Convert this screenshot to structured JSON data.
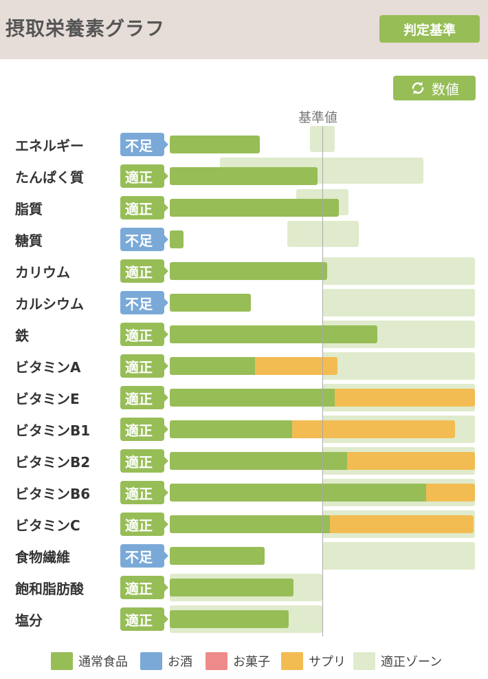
{
  "header": {
    "title": "摂取栄養素グラフ",
    "criteria_label": "判定基準"
  },
  "toggle": {
    "label": "数値",
    "icon": "refresh-icon"
  },
  "reference_label": "基準値",
  "badges": {
    "ok": "適正",
    "ng": "不足"
  },
  "colors": {
    "food": "#97bd57",
    "alcohol": "#7aa9d7",
    "sweets": "#ef8a8a",
    "supplement": "#f2bc52",
    "zone": "#dfebcc",
    "header_bg": "#e6ddd8"
  },
  "chart_data": {
    "type": "bar",
    "orientation": "horizontal",
    "stacked": true,
    "unit": "percent of reference value",
    "reference_value": 100,
    "categories": [
      "エネルギー",
      "たんぱく質",
      "脂質",
      "糖質",
      "カリウム",
      "カルシウム",
      "鉄",
      "ビタミンA",
      "ビタミンE",
      "ビタミンB1",
      "ビタミンB2",
      "ビタミンB6",
      "ビタミンC",
      "食物繊維",
      "飽和脂肪酸",
      "塩分"
    ],
    "status": [
      "不足",
      "適正",
      "適正",
      "不足",
      "適正",
      "不足",
      "適正",
      "適正",
      "適正",
      "適正",
      "適正",
      "適正",
      "適正",
      "不足",
      "適正",
      "適正"
    ],
    "series": [
      {
        "name": "通常食品",
        "values": [
          59,
          97,
          111,
          9,
          103,
          53,
          136,
          56,
          108,
          80,
          116,
          168,
          105,
          62,
          81,
          78
        ]
      },
      {
        "name": "お酒",
        "values": [
          0,
          0,
          0,
          0,
          0,
          0,
          0,
          0,
          0,
          0,
          0,
          0,
          0,
          0,
          0,
          0
        ]
      },
      {
        "name": "お菓子",
        "values": [
          0,
          0,
          0,
          0,
          0,
          0,
          0,
          0,
          0,
          0,
          0,
          0,
          0,
          0,
          0,
          0
        ]
      },
      {
        "name": "サプリ",
        "values": [
          0,
          0,
          0,
          0,
          0,
          0,
          0,
          54,
          92,
          107,
          84,
          32,
          94,
          0,
          0,
          0
        ]
      }
    ],
    "optimal_zone": [
      [
        92,
        108
      ],
      [
        33,
        166
      ],
      [
        83,
        117
      ],
      [
        77,
        124
      ],
      [
        100,
        200
      ],
      [
        100,
        200
      ],
      [
        100,
        200
      ],
      [
        100,
        200
      ],
      [
        100,
        200
      ],
      [
        100,
        200
      ],
      [
        100,
        200
      ],
      [
        100,
        200
      ],
      [
        100,
        200
      ],
      [
        100,
        200
      ],
      [
        0,
        100
      ],
      [
        0,
        100
      ]
    ],
    "legend": [
      "通常食品",
      "お酒",
      "お菓子",
      "サプリ",
      "適正ゾーン"
    ],
    "legend_position": "bottom"
  }
}
